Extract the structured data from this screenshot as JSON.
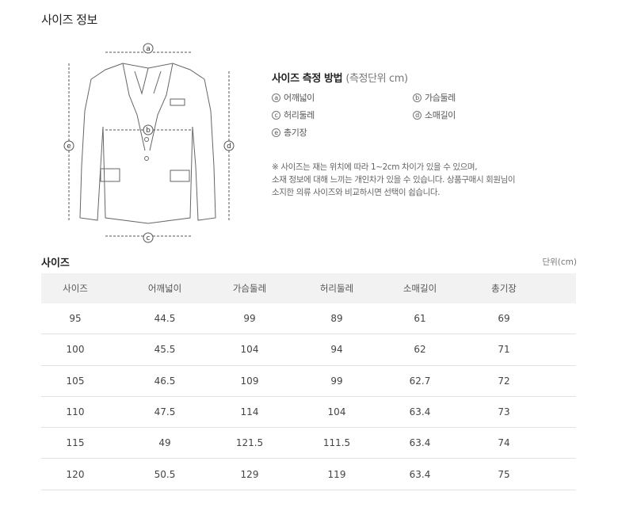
{
  "title": "사이즈 정보",
  "diagram": {
    "labels": [
      "a",
      "b",
      "c",
      "d",
      "e"
    ]
  },
  "measure": {
    "heading": "사이즈 측정 방법",
    "heading_unit": "(측정단위 cm)",
    "items": [
      {
        "key": "a",
        "label": "어깨넓이"
      },
      {
        "key": "b",
        "label": "가슴둘레"
      },
      {
        "key": "c",
        "label": "허리둘레"
      },
      {
        "key": "d",
        "label": "소매길이"
      },
      {
        "key": "e",
        "label": "총기장"
      }
    ],
    "note": [
      "※ 사이즈는 재는 위치에 따라 1~2cm 차이가 있을 수 있으며,",
      "소재 정보에 대해 느끼는 개인차가 있을 수 있습니다. 상품구매시 회원님이",
      "소지한 의류 사이즈와 비교하시면 선택이 쉽습니다."
    ]
  },
  "table": {
    "title": "사이즈",
    "unit": "단위(cm)",
    "headers": [
      "사이즈",
      "어깨넓이",
      "가슴둘레",
      "허리둘레",
      "소매길이",
      "총기장"
    ],
    "rows": [
      [
        "95",
        "44.5",
        "99",
        "89",
        "61",
        "69"
      ],
      [
        "100",
        "45.5",
        "104",
        "94",
        "62",
        "71"
      ],
      [
        "105",
        "46.5",
        "109",
        "99",
        "62.7",
        "72"
      ],
      [
        "110",
        "47.5",
        "114",
        "104",
        "63.4",
        "73"
      ],
      [
        "115",
        "49",
        "121.5",
        "111.5",
        "63.4",
        "74"
      ],
      [
        "120",
        "50.5",
        "129",
        "119",
        "63.4",
        "75"
      ]
    ]
  }
}
